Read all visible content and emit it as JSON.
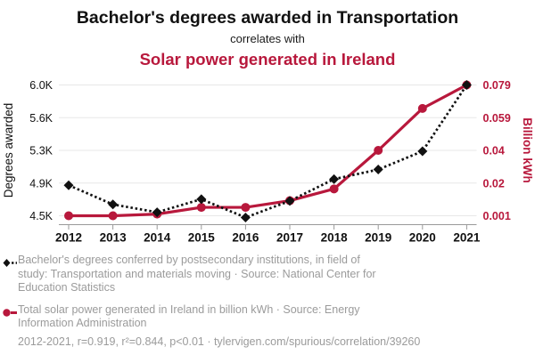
{
  "header": {
    "title": "Bachelor's degrees awarded in Transportation",
    "connector": "correlates with",
    "subtitle": "Solar power generated in Ireland"
  },
  "colors": {
    "red": "#b8183c",
    "text_dark": "#111111",
    "gridline": "#e7e7e7",
    "axis": "#999999",
    "muted_text": "#9b9b9b",
    "background": "#ffffff"
  },
  "chart_data": {
    "type": "line",
    "x": [
      2012,
      2013,
      2014,
      2015,
      2016,
      2017,
      2018,
      2019,
      2020,
      2021
    ],
    "series": [
      {
        "name": "Bachelor's degrees awarded in Transportation",
        "axis": "left",
        "marker": "diamond",
        "line_style": "dotted",
        "color": "#111111",
        "values": [
          4850,
          4630,
          4540,
          4690,
          4480,
          4670,
          4920,
          5030,
          5240,
          6000
        ]
      },
      {
        "name": "Solar power generated in Ireland",
        "axis": "right",
        "marker": "circle",
        "line_style": "solid",
        "color": "#b8183c",
        "values": [
          0.001,
          0.001,
          0.002,
          0.006,
          0.006,
          0.01,
          0.017,
          0.04,
          0.065,
          0.079
        ]
      }
    ],
    "ylabel_left": "Degrees awarded",
    "ylabel_right": "Billion kWh",
    "ylim_left": [
      4500,
      6000
    ],
    "ylim_right": [
      0.001,
      0.079
    ],
    "yticks_left": [
      {
        "value": 4500,
        "label": "4.5K"
      },
      {
        "value": 4875,
        "label": "4.9K"
      },
      {
        "value": 5250,
        "label": "5.3K"
      },
      {
        "value": 5625,
        "label": "5.6K"
      },
      {
        "value": 6000,
        "label": "6.0K"
      }
    ],
    "yticks_right": [
      {
        "value": 0.001,
        "label": "0.001"
      },
      {
        "value": 0.0205,
        "label": "0.02"
      },
      {
        "value": 0.04,
        "label": "0.04"
      },
      {
        "value": 0.0595,
        "label": "0.059"
      },
      {
        "value": 0.079,
        "label": "0.079"
      }
    ],
    "grid": true,
    "legend_position": "below"
  },
  "legend": [
    {
      "marker": "black-diamond-dotted",
      "text": "Bachelor's degrees conferred by postsecondary institutions, in field of study: Transportation and materials moving · Source: National Center for Education Statistics"
    },
    {
      "marker": "red-circle-solid",
      "text": "Total solar power generated in Ireland in billion kWh · Source: Energy Information Administration"
    }
  ],
  "footer": {
    "stats": "2012-2021, r=0.919, r²=0.844, p<0.01 · tylervigen.com/spurious/correlation/39260"
  }
}
